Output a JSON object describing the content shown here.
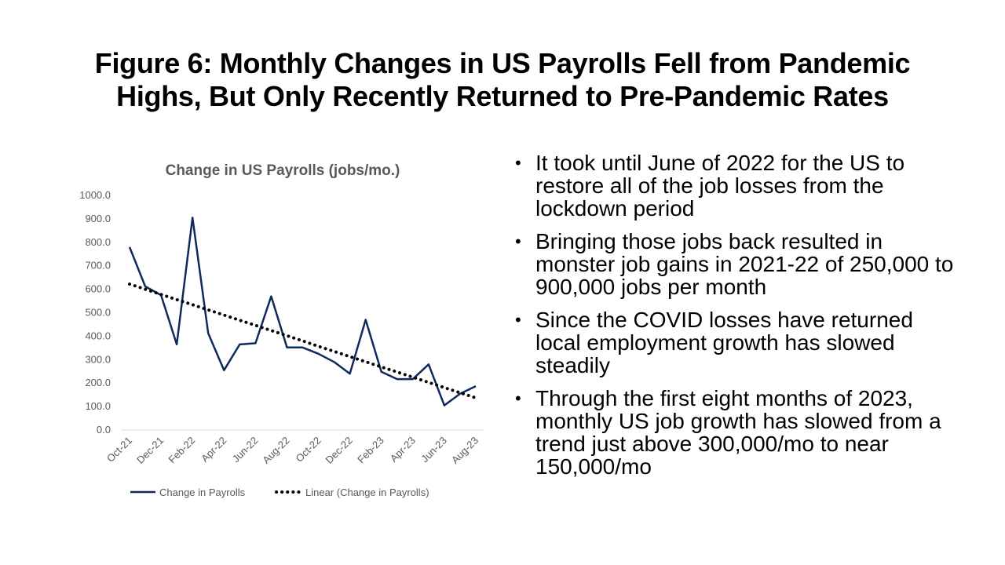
{
  "slide": {
    "title_line1": "Figure 6: Monthly Changes in US Payrolls Fell from Pandemic",
    "title_line2": "Highs, But Only Recently Returned to Pre-Pandemic Rates"
  },
  "bullets": [
    "It took until June of 2022 for the US to restore all of the job losses from the lockdown period",
    "Bringing those jobs back resulted in monster job gains in 2021-22 of 250,000 to 900,000 jobs per month",
    "Since the COVID losses have returned local employment growth has slowed steadily",
    "Through the first eight months of 2023, monthly US job growth has slowed from a trend just above 300,000/mo to near 150,000/mo"
  ],
  "colors": {
    "series": "#0e2a5c",
    "trend": "#000000",
    "axis_text": "#595959",
    "axis_line": "#d9d9d9"
  },
  "chart_data": {
    "type": "line",
    "title": "Change in US Payrolls (jobs/mo.)",
    "x": [
      "Oct-21",
      "Nov-21",
      "Dec-21",
      "Jan-22",
      "Feb-22",
      "Mar-22",
      "Apr-22",
      "May-22",
      "Jun-22",
      "Jul-22",
      "Aug-22",
      "Sep-22",
      "Oct-22",
      "Nov-22",
      "Dec-22",
      "Jan-23",
      "Feb-23",
      "Mar-23",
      "Apr-23",
      "May-23",
      "Jun-23",
      "Jul-23",
      "Aug-23"
    ],
    "x_tick_labels": [
      "Oct-21",
      "Dec-21",
      "Feb-22",
      "Apr-22",
      "Jun-22",
      "Aug-22",
      "Oct-22",
      "Dec-22",
      "Feb-23",
      "Apr-23",
      "Jun-23",
      "Aug-23"
    ],
    "series": [
      {
        "name": "Change in Payrolls",
        "values": [
          780,
          612,
          575,
          365,
          905,
          412,
          255,
          365,
          370,
          570,
          352,
          352,
          325,
          290,
          240,
          470,
          248,
          217,
          217,
          280,
          105,
          155,
          187
        ]
      },
      {
        "name": "Linear (Change in Payrolls)",
        "style": "dotted",
        "values": [
          622,
          600,
          578,
          556,
          534,
          512,
          490,
          468,
          446,
          424,
          402,
          380,
          357,
          335,
          313,
          291,
          269,
          247,
          225,
          203,
          181,
          159,
          137
        ]
      }
    ],
    "y_ticks": [
      "0.0",
      "100.0",
      "200.0",
      "300.0",
      "400.0",
      "500.0",
      "600.0",
      "700.0",
      "800.0",
      "900.0",
      "1000.0"
    ],
    "ylim": [
      0,
      1000
    ],
    "grid": false,
    "legend_position": "bottom"
  }
}
